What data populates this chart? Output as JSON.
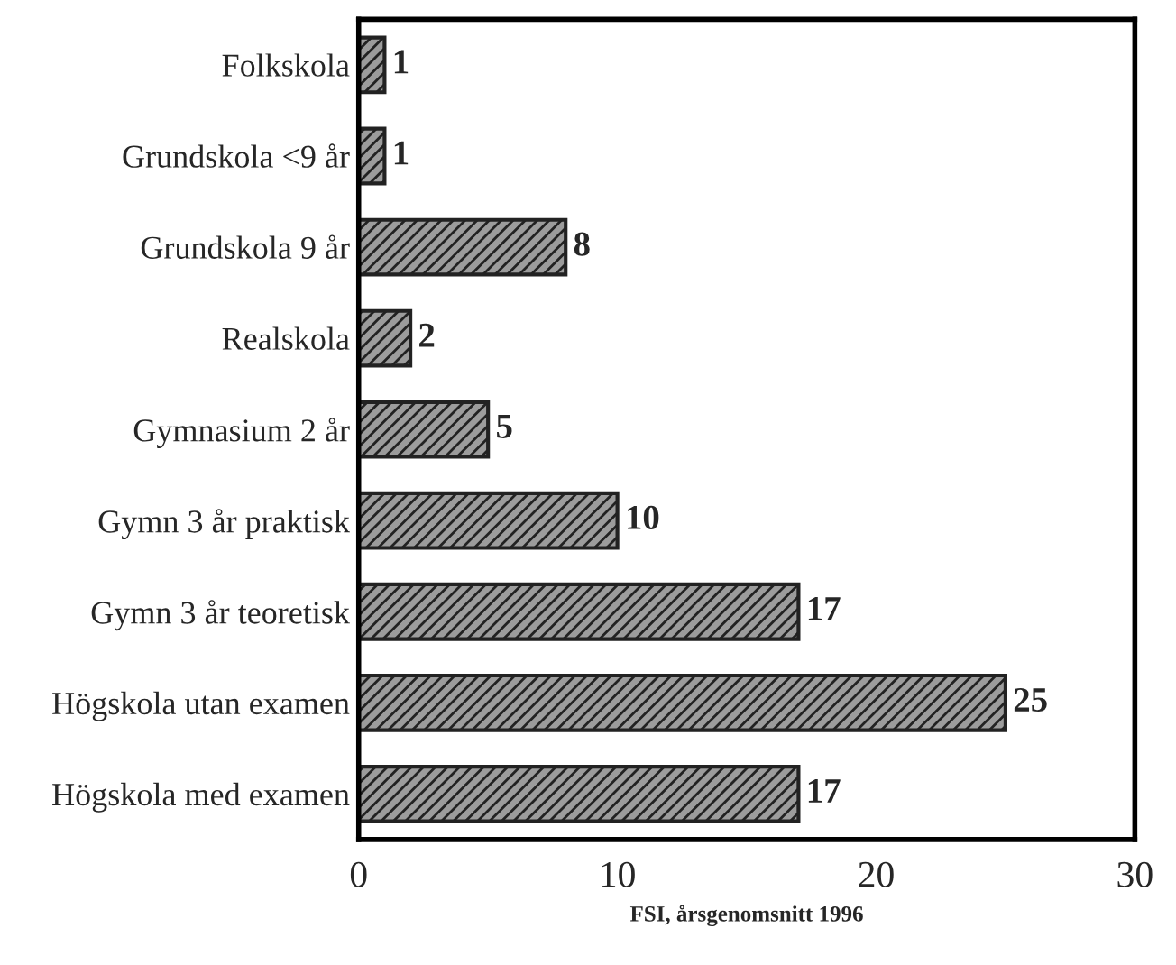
{
  "chart_data": {
    "type": "bar",
    "orientation": "horizontal",
    "xlabel": "FSI, årsgenomsnitt 1996",
    "categories": [
      "Folkskola",
      "Grundskola <9 år",
      "Grundskola 9 år",
      "Realskola",
      "Gymnasium 2 år",
      "Gymn 3 år praktisk",
      "Gymn 3 år teoretisk",
      "Högskola utan examen",
      "Högskola med examen"
    ],
    "values": [
      1,
      1,
      8,
      2,
      5,
      10,
      17,
      25,
      17
    ],
    "color": "#222222",
    "xlim": [
      0,
      30
    ],
    "xticks": [
      0,
      10,
      20,
      30
    ],
    "data_labels": true,
    "grid": false
  }
}
